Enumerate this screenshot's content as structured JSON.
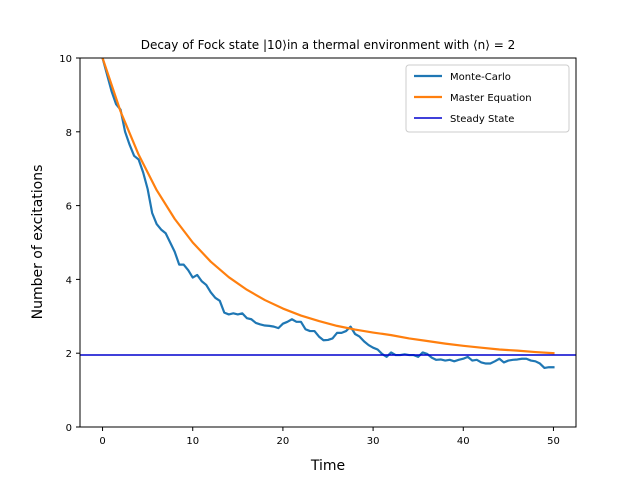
{
  "chart_data": {
    "type": "line",
    "title": "Decay of Fock state |10⟩in a thermal environment with ⟨n⟩ = 2",
    "xlabel": "Time",
    "ylabel": "Number of excitations",
    "xlim": [
      -2.5,
      52.5
    ],
    "ylim": [
      0,
      10
    ],
    "xticks": [
      0,
      10,
      20,
      30,
      40,
      50
    ],
    "yticks": [
      0,
      2,
      4,
      6,
      8,
      10
    ],
    "grid": false,
    "legend_position": "top-right",
    "series": [
      {
        "name": "Monte-Carlo",
        "color": "#1f77b4",
        "style": "line",
        "x": [
          0,
          0.5,
          1,
          1.5,
          2,
          2.5,
          3,
          3.5,
          4,
          4.5,
          5,
          5.5,
          6,
          6.5,
          7,
          7.5,
          8,
          8.5,
          9,
          9.5,
          10,
          10.5,
          11,
          11.5,
          12,
          12.5,
          13,
          13.5,
          14,
          14.5,
          15,
          15.5,
          16,
          16.5,
          17,
          17.5,
          18,
          18.5,
          19,
          19.5,
          20,
          20.5,
          21,
          21.5,
          22,
          22.5,
          23,
          23.5,
          24,
          24.5,
          25,
          25.5,
          26,
          26.5,
          27,
          27.5,
          28,
          28.5,
          29,
          29.5,
          30,
          30.5,
          31,
          31.5,
          32,
          32.5,
          33,
          33.5,
          34,
          34.5,
          35,
          35.5,
          36,
          36.5,
          37,
          37.5,
          38,
          38.5,
          39,
          39.5,
          40,
          40.5,
          41,
          41.5,
          42,
          42.5,
          43,
          43.5,
          44,
          44.5,
          45,
          45.5,
          46,
          46.5,
          47,
          47.5,
          48,
          48.5,
          49,
          49.5,
          50
        ],
        "y": [
          10.0,
          9.55,
          9.1,
          8.75,
          8.6,
          8.0,
          7.65,
          7.35,
          7.25,
          6.9,
          6.45,
          5.8,
          5.5,
          5.35,
          5.25,
          5.0,
          4.75,
          4.4,
          4.4,
          4.25,
          4.05,
          4.12,
          3.95,
          3.85,
          3.65,
          3.5,
          3.42,
          3.1,
          3.05,
          3.08,
          3.05,
          3.08,
          2.95,
          2.92,
          2.82,
          2.78,
          2.75,
          2.74,
          2.72,
          2.68,
          2.8,
          2.85,
          2.92,
          2.85,
          2.85,
          2.65,
          2.6,
          2.6,
          2.45,
          2.35,
          2.36,
          2.4,
          2.55,
          2.55,
          2.6,
          2.72,
          2.52,
          2.45,
          2.32,
          2.22,
          2.15,
          2.1,
          1.98,
          1.9,
          2.02,
          1.95,
          1.95,
          1.97,
          1.95,
          1.95,
          1.9,
          2.02,
          1.98,
          1.88,
          1.82,
          1.83,
          1.8,
          1.82,
          1.78,
          1.82,
          1.85,
          1.9,
          1.8,
          1.82,
          1.75,
          1.72,
          1.72,
          1.78,
          1.85,
          1.75,
          1.8,
          1.82,
          1.83,
          1.85,
          1.85,
          1.8,
          1.78,
          1.72,
          1.6,
          1.62,
          1.62
        ]
      },
      {
        "name": "Master Equation",
        "color": "#ff7f0e",
        "style": "line",
        "x": [
          0,
          2,
          4,
          6,
          8,
          10,
          12,
          14,
          16,
          18,
          20,
          22,
          24,
          26,
          28,
          30,
          32,
          34,
          36,
          38,
          40,
          42,
          44,
          46,
          48,
          50
        ],
        "y": [
          10.0,
          8.55,
          7.38,
          6.42,
          5.64,
          5.0,
          4.48,
          4.06,
          3.72,
          3.44,
          3.21,
          3.02,
          2.87,
          2.74,
          2.64,
          2.56,
          2.49,
          2.4,
          2.33,
          2.26,
          2.2,
          2.15,
          2.1,
          2.07,
          2.03,
          2.0
        ]
      },
      {
        "name": "Steady State",
        "color": "#0000cd",
        "style": "hline",
        "value": 1.95
      }
    ]
  }
}
